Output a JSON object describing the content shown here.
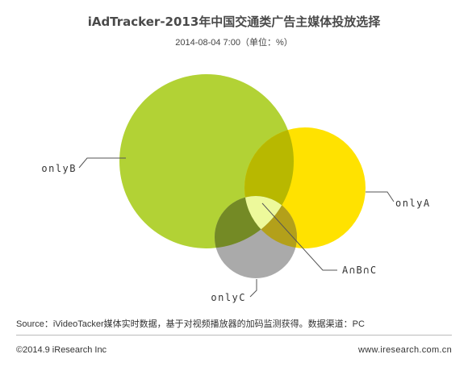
{
  "chart_data": {
    "type": "venn",
    "title": "iAdTracker-2013年中国交通类广告主媒体投放选择",
    "subtitle": "2014-08-04 7:00（单位：%）",
    "sets": [
      {
        "label": "onlyB",
        "color": "#b2d235"
      },
      {
        "label": "onlyA",
        "color": "#ffe200"
      },
      {
        "label": "onlyC",
        "color": "#aaaaaa"
      }
    ],
    "intersections": [
      {
        "label": "A∩B∩C",
        "color": "#edf99b"
      }
    ],
    "overlap_colors": {
      "A_B": "#b8b800",
      "B_C": "#748a25",
      "A_C": "#b3a01a"
    }
  },
  "source": "Source：iVideoTacker媒体实时数据，基于对视频播放器的加码监测获得。数据渠道：PC",
  "copyright": "©2014.9 iResearch Inc",
  "website": "www.iresearch.com.cn"
}
